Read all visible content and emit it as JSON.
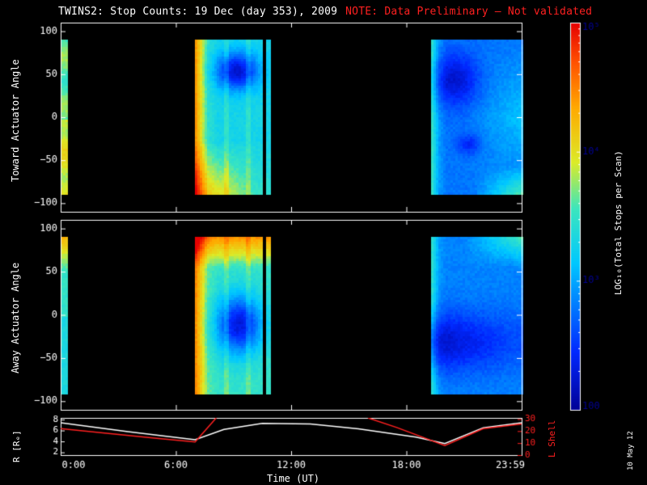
{
  "title": "TWINS2: Stop Counts: 19 Dec (day 353), 2009",
  "note": "NOTE: Data Preliminary – Not validated",
  "stamp": "10 May 12",
  "colors": {
    "background": "#000000",
    "axes": "#ffffff",
    "note": "#ff2020",
    "lshell": "#ff2020",
    "radius": "#ffffff"
  },
  "panels": {
    "toward": {
      "ylabel": "Toward Actuator Angle"
    },
    "away": {
      "ylabel": "Away Actuator Angle"
    },
    "orbit": {
      "ylabel_left": "R [Rₑ]",
      "ylabel_right": "L Shell"
    },
    "xlabel": "Time (UT)",
    "colorbar_label": "LOG₁₀(Total Stops per Scan)"
  },
  "chart_data": [
    {
      "type": "heatmap",
      "name": "toward",
      "ylabel": "Toward Actuator Angle",
      "xlim": [
        0,
        24
      ],
      "ylim": [
        -110,
        110
      ],
      "yticks": [
        100,
        50,
        0,
        -50,
        -100
      ],
      "data_y_range": [
        -90,
        90
      ],
      "data_time_intervals_hours": [
        [
          0.0,
          0.35
        ],
        [
          7.0,
          10.5
        ],
        [
          10.7,
          10.85
        ],
        [
          19.3,
          24.0
        ]
      ],
      "colorscale": "log",
      "clim": [
        100,
        100000
      ],
      "notes": "low counts (blue) near +50 deg around 08:00-10:30 and 19:30-21:00; high counts (orange/red) near -90 deg and at pass starts"
    },
    {
      "type": "heatmap",
      "name": "away",
      "ylabel": "Away Actuator Angle",
      "xlim": [
        0,
        24
      ],
      "ylim": [
        -110,
        110
      ],
      "yticks": [
        100,
        50,
        0,
        -50,
        -100
      ],
      "data_y_range": [
        -90,
        90
      ],
      "data_time_intervals_hours": [
        [
          0.0,
          0.35
        ],
        [
          7.0,
          10.5
        ],
        [
          10.7,
          10.85
        ],
        [
          19.3,
          24.0
        ]
      ],
      "colorscale": "log",
      "clim": [
        100,
        100000
      ],
      "notes": "high counts (orange/red) near +90 deg; low counts (blue) near 0 to -60 deg"
    },
    {
      "type": "colorbar",
      "label": "LOG₁₀(Total Stops per Scan)",
      "tick_labels": [
        "10⁵",
        "10⁴",
        "10³",
        "100"
      ],
      "tick_values": [
        100000,
        10000,
        1000,
        100
      ],
      "scale": "log"
    },
    {
      "type": "line",
      "name": "orbit",
      "xlabel": "Time (UT)",
      "xlim": [
        0,
        24
      ],
      "xticks": [
        0,
        6,
        12,
        18,
        24
      ],
      "xtick_labels": [
        "0:00",
        "6:00",
        "12:00",
        "18:00",
        "23:59"
      ],
      "y_left": {
        "label": "R [Rₑ]",
        "ticks": [
          2,
          4,
          6,
          8
        ],
        "lim": [
          1.5,
          8.3
        ]
      },
      "y_right": {
        "label": "L Shell",
        "ticks": [
          0,
          10,
          20,
          30
        ],
        "lim": [
          0,
          31
        ]
      },
      "series": [
        {
          "axis": "left",
          "color": "#ffffff",
          "x": [
            0,
            3.5,
            7.0,
            8.5,
            10.5,
            13,
            15.5,
            18.5,
            20.0,
            22.0,
            24
          ],
          "y": [
            7.4,
            5.8,
            4.3,
            6.2,
            7.3,
            7.2,
            6.3,
            4.8,
            3.6,
            6.5,
            7.4
          ]
        },
        {
          "axis": "right",
          "color": "#ff2020",
          "segments": [
            {
              "x": [
                0,
                2.5,
                5.0,
                7.0,
                8.1
              ],
              "y": [
                22,
                18,
                14,
                11,
                31
              ]
            },
            {
              "x": [
                16.0,
                17.5,
                20.0,
                22.0,
                24
              ],
              "y": [
                31,
                23,
                8,
                22,
                26
              ]
            }
          ]
        }
      ]
    }
  ]
}
